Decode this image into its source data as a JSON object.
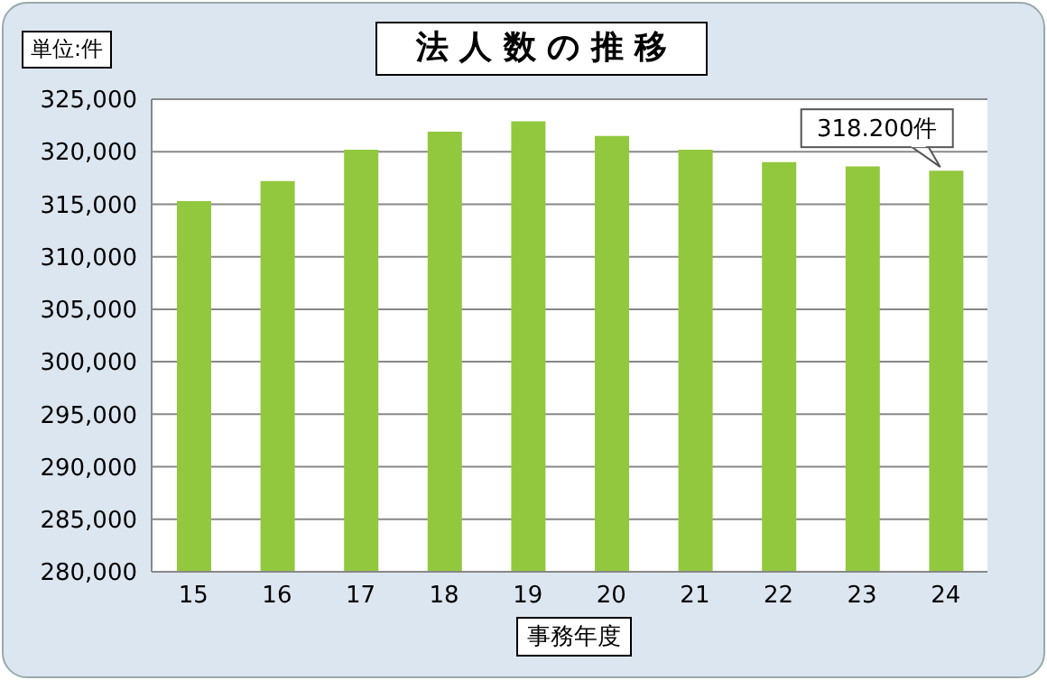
{
  "chart_data": {
    "type": "bar",
    "title": "法 人 数 の 推 移",
    "xlabel": "事務年度",
    "annotations": [
      "単位:件",
      {
        "text": "318.200件",
        "x": "24",
        "y": 318200
      }
    ],
    "categories": [
      "15",
      "16",
      "17",
      "18",
      "19",
      "20",
      "21",
      "22",
      "23",
      "24"
    ],
    "values": [
      315300,
      317200,
      320200,
      321900,
      322900,
      321500,
      320200,
      319000,
      318600,
      318200
    ],
    "color": "#92c83e",
    "ylim": [
      280000,
      325000
    ],
    "yticks": [
      {
        "value": 280000,
        "label": "280,000"
      },
      {
        "value": 285000,
        "label": "285,000"
      },
      {
        "value": 290000,
        "label": "290,000"
      },
      {
        "value": 295000,
        "label": "295,000"
      },
      {
        "value": 300000,
        "label": "300,000"
      },
      {
        "value": 305000,
        "label": "305,000"
      },
      {
        "value": 310000,
        "label": "310,000"
      },
      {
        "value": 315000,
        "label": "315,000"
      },
      {
        "value": 320000,
        "label": "320,000"
      },
      {
        "value": 325000,
        "label": "325,000"
      }
    ],
    "grid": "y",
    "legend": false
  }
}
